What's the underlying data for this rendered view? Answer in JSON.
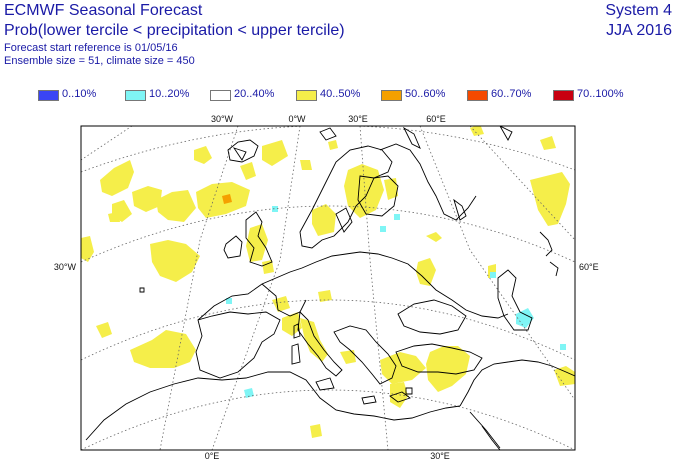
{
  "header": {
    "title": "ECMWF Seasonal Forecast",
    "subtitle": "Prob(lower tercile < precipitation < upper tercile)",
    "forecast_start": "Forecast start reference is 01/05/16",
    "ensemble": "Ensemble size = 51, climate size = 450",
    "system": "System 4",
    "season": "JJA 2016"
  },
  "legend": [
    {
      "label": "0..10%",
      "color": "#3a45f5"
    },
    {
      "label": "10..20%",
      "color": "#7ff5f5"
    },
    {
      "label": "20..40%",
      "color": "#ffffff"
    },
    {
      "label": "40..50%",
      "color": "#f5ee4a"
    },
    {
      "label": "50..60%",
      "color": "#f5a000"
    },
    {
      "label": "60..70%",
      "color": "#f54a00"
    },
    {
      "label": "70..100%",
      "color": "#c80010"
    }
  ],
  "map": {
    "top_labels": [
      "30°W",
      "0°W",
      "30°E",
      "60°E"
    ],
    "left_label": "30°W",
    "right_label": "60°E",
    "bottom_labels": [
      "0°E",
      "30°E"
    ],
    "colors": {
      "land_outline": "#000000",
      "grid": "#666666",
      "prob_40_50": "#f5ee4a",
      "prob_50_60": "#f5a000",
      "prob_10_20": "#7ff5f5"
    }
  }
}
